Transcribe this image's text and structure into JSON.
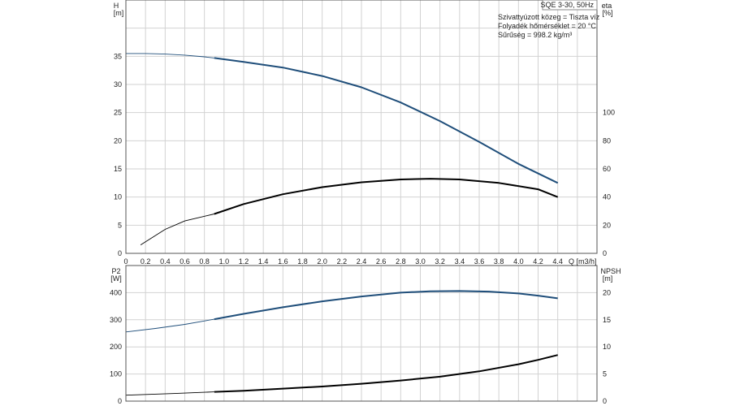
{
  "chart_data": [
    {
      "type": "line",
      "title": "SQE 3-30, 50Hz",
      "notes": [
        "Szivattyúzott közeg = Tiszta víz",
        "Folyadék hőmérséklet = 20 °C",
        "Sűrűség = 998.2 kg/m³"
      ],
      "xlabel": "Q [m3/h]",
      "xlim": [
        0,
        4.8
      ],
      "xticks": [
        "0",
        "0.2",
        "0.4",
        "0.6",
        "0.8",
        "1.0",
        "1.2",
        "1.4",
        "1.6",
        "1.8",
        "2.0",
        "2.2",
        "2.4",
        "2.6",
        "2.8",
        "3.0",
        "3.2",
        "3.4",
        "3.6",
        "3.8",
        "4.0",
        "4.2",
        "4.4"
      ],
      "ylabel_left": [
        "H",
        "[m]"
      ],
      "ylim_left": [
        0,
        45
      ],
      "yticks_left": [
        "0",
        "5",
        "10",
        "15",
        "20",
        "25",
        "30",
        "35"
      ],
      "ylabel_right": [
        "eta",
        "[%]"
      ],
      "ylim_right": [
        0,
        180
      ],
      "yticks_right": [
        "0",
        "20",
        "40",
        "60",
        "80",
        "100"
      ],
      "grid": true,
      "series": [
        {
          "axis": "left",
          "color": "#1f4e7a",
          "x": [
            0,
            0.2,
            0.4,
            0.6,
            0.8,
            0.9,
            1.2,
            1.6,
            2.0,
            2.4,
            2.8,
            3.2,
            3.6,
            4.0,
            4.4
          ],
          "y": [
            35.5,
            35.5,
            35.4,
            35.2,
            34.9,
            34.7,
            34.0,
            33.0,
            31.5,
            29.5,
            26.8,
            23.5,
            19.8,
            15.9,
            12.5
          ],
          "dashed_until": 0.9
        },
        {
          "axis": "right",
          "color": "#000000",
          "x": [
            0.15,
            0.4,
            0.6,
            0.9,
            1.2,
            1.6,
            2.0,
            2.4,
            2.8,
            3.1,
            3.4,
            3.8,
            4.2,
            4.4
          ],
          "y": [
            6,
            17,
            23,
            28,
            35,
            42,
            47,
            50.5,
            52.5,
            53,
            52.5,
            50,
            45.5,
            40
          ],
          "dashed_until": 0.9
        }
      ]
    },
    {
      "type": "line",
      "xlim": [
        0,
        4.8
      ],
      "ylabel_left": [
        "P2",
        "[W]"
      ],
      "ylim_left": [
        0,
        500
      ],
      "yticks_left": [
        "0",
        "100",
        "200",
        "300",
        "400"
      ],
      "ylabel_right": [
        "NPSH",
        "[m]"
      ],
      "ylim_right": [
        0,
        25
      ],
      "yticks_right": [
        "0",
        "5",
        "10",
        "15",
        "20"
      ],
      "grid": true,
      "series": [
        {
          "axis": "left",
          "color": "#1f4e7a",
          "x": [
            0,
            0.3,
            0.6,
            0.9,
            1.2,
            1.6,
            2.0,
            2.4,
            2.8,
            3.1,
            3.4,
            3.7,
            4.0,
            4.2,
            4.4
          ],
          "y": [
            255,
            268,
            283,
            302,
            322,
            346,
            368,
            386,
            400,
            405,
            406,
            404,
            397,
            389,
            379
          ],
          "dashed_until": 0.9
        },
        {
          "axis": "right",
          "color": "#000000",
          "x": [
            0,
            0.5,
            0.9,
            1.2,
            1.6,
            2.0,
            2.4,
            2.8,
            3.2,
            3.6,
            4.0,
            4.2,
            4.4
          ],
          "y": [
            1.1,
            1.4,
            1.7,
            1.9,
            2.3,
            2.7,
            3.2,
            3.8,
            4.5,
            5.5,
            6.8,
            7.6,
            8.5
          ],
          "dashed_until": 0.9
        }
      ]
    }
  ]
}
